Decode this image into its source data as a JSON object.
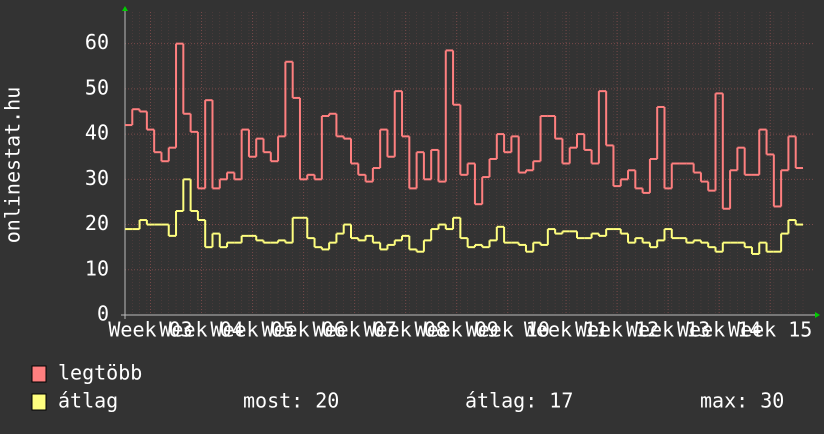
{
  "chart_data": {
    "type": "line",
    "step": true,
    "ylabel": "onlinestat.hu",
    "ylim": [
      0,
      67
    ],
    "yticks": [
      0,
      10,
      20,
      30,
      40,
      50,
      60
    ],
    "grid": true,
    "categories": [
      null,
      null,
      null,
      "Week 03",
      null,
      null,
      null,
      null,
      null,
      null,
      "Week 04",
      null,
      null,
      null,
      null,
      null,
      null,
      "Week 05",
      null,
      null,
      null,
      null,
      null,
      null,
      "Week 06",
      null,
      null,
      null,
      null,
      null,
      null,
      "Week 07",
      null,
      null,
      null,
      null,
      null,
      null,
      "Week 08",
      null,
      null,
      null,
      null,
      null,
      null,
      "Week 09",
      null,
      null,
      null,
      null,
      null,
      null,
      "Week 10",
      null,
      null,
      null,
      null,
      null,
      null,
      null,
      "Week 11",
      null,
      null,
      null,
      null,
      null,
      null,
      "Week 12",
      null,
      null,
      null,
      null,
      null,
      null,
      "Week 13",
      null,
      null,
      null,
      null,
      null,
      null,
      "Week 14",
      null,
      null,
      null,
      null,
      null,
      null,
      "Week 15",
      null,
      null,
      null,
      null
    ],
    "series": [
      {
        "name": "legtöbb",
        "color": "#ff7f7f",
        "values": [
          42,
          45.5,
          45,
          41,
          36,
          34,
          37,
          60,
          44.5,
          40.5,
          28,
          47.5,
          28,
          30,
          31.5,
          30,
          41,
          35,
          39,
          36,
          34,
          39.5,
          56,
          48,
          30,
          31,
          30,
          44,
          44.5,
          39.5,
          39,
          33.5,
          31,
          29.5,
          32.5,
          41,
          35,
          49.5,
          39.5,
          28,
          36,
          30,
          36.5,
          29.5,
          58.5,
          46.5,
          31,
          33.5,
          24.5,
          30.5,
          34.5,
          40,
          36,
          39.5,
          31.5,
          32,
          34,
          44,
          44,
          39,
          33.5,
          37,
          40,
          36.5,
          33.5,
          49.5,
          37.5,
          28.5,
          30,
          32,
          28,
          27,
          34.5,
          46,
          28,
          33.5,
          33.5,
          33.5,
          31.5,
          29.5,
          27.5,
          49,
          23.5,
          32,
          37,
          31,
          31,
          41,
          35.5,
          24,
          32,
          39.5,
          32.5
        ]
      },
      {
        "name": "átlag",
        "color": "#ffff7f",
        "values": [
          19,
          19,
          21,
          20,
          20,
          20,
          17.5,
          23,
          30,
          23,
          21,
          15,
          18,
          15,
          16,
          16,
          17.5,
          17.5,
          16.5,
          16,
          16,
          16.5,
          16,
          21.5,
          21.5,
          17,
          15,
          14.5,
          16,
          18,
          20,
          17,
          16.5,
          17.5,
          16,
          14.5,
          15.5,
          16.5,
          17.5,
          14.5,
          14,
          16.5,
          19,
          20,
          19,
          21.5,
          17,
          15,
          15.5,
          15,
          16.5,
          19.5,
          16,
          16,
          15.5,
          14,
          16,
          15.5,
          19,
          18,
          18.5,
          18.5,
          17,
          17,
          18,
          17.5,
          19,
          19,
          18,
          16,
          17,
          16,
          15,
          16.5,
          19,
          17,
          17,
          16,
          16.5,
          16,
          15,
          14,
          16,
          16,
          16,
          15,
          13.5,
          16,
          14,
          14,
          18,
          21,
          20
        ]
      }
    ],
    "stats": [
      "most: 20",
      "átlag: 17",
      "max: 30"
    ]
  }
}
